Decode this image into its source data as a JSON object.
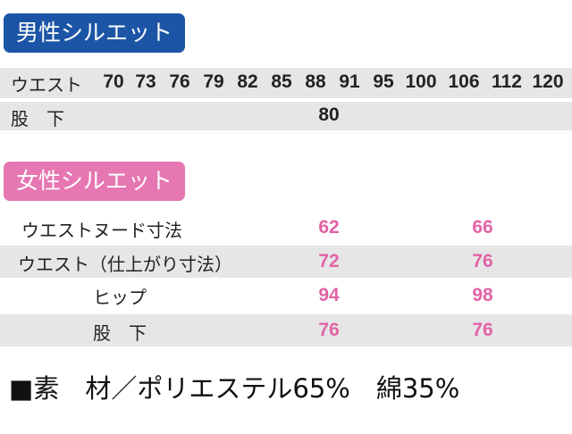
{
  "male": {
    "title": "男性シルエット",
    "waist_label": "ウエスト",
    "waist_sizes": [
      "70",
      "73",
      "76",
      "79",
      "82",
      "85",
      "88",
      "91",
      "95",
      "100",
      "106",
      "112",
      "120"
    ],
    "inseam_label": "股　下",
    "inseam_value": "80"
  },
  "female": {
    "title": "女性シルエット",
    "rows": [
      {
        "label": "ウエストヌード寸法",
        "values": [
          "62",
          "66"
        ]
      },
      {
        "label": "ウエスト（仕上がり寸法）",
        "values": [
          "72",
          "76"
        ]
      },
      {
        "label": "ヒップ",
        "values": [
          "94",
          "98"
        ]
      },
      {
        "label": "股　下",
        "values": [
          "76",
          "76"
        ]
      }
    ]
  },
  "material": "■素　材／ポリエステル65%　綿35%",
  "colors": {
    "male_badge": "#1c55a6",
    "female_badge": "#e677b2",
    "female_values": "#e263a6",
    "row_shade": "#e6e6e6"
  }
}
